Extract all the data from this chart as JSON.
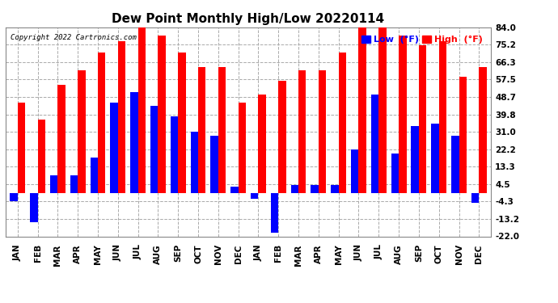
{
  "title": "Dew Point Monthly High/Low 20220114",
  "copyright": "Copyright 2022 Cartronics.com",
  "legend_low": "Low  (°F)",
  "legend_high": "High  (°F)",
  "months": [
    "JAN",
    "FEB",
    "MAR",
    "APR",
    "MAY",
    "JUN",
    "JUL",
    "AUG",
    "SEP",
    "OCT",
    "NOV",
    "DEC",
    "JAN",
    "FEB",
    "MAR",
    "APR",
    "MAY",
    "JUN",
    "JUL",
    "AUG",
    "SEP",
    "OCT",
    "NOV",
    "DEC"
  ],
  "high_values": [
    46,
    37,
    55,
    62,
    71,
    77,
    84,
    80,
    71,
    64,
    64,
    46,
    50,
    57,
    62,
    62,
    71,
    84,
    84,
    80,
    75,
    77,
    59,
    64
  ],
  "low_values": [
    -4,
    -15,
    9,
    9,
    18,
    46,
    51,
    44,
    39,
    31,
    29,
    3,
    -3,
    -20,
    4,
    4,
    4,
    22,
    50,
    20,
    34,
    35,
    29,
    -5
  ],
  "ylim": [
    -22,
    84
  ],
  "yticks": [
    -22.0,
    -13.2,
    -4.3,
    4.5,
    13.3,
    22.2,
    31.0,
    39.8,
    48.7,
    57.5,
    66.3,
    75.2,
    84.0
  ],
  "high_color": "#ff0000",
  "low_color": "#0000ff",
  "bg_color": "#ffffff",
  "grid_color": "#aaaaaa",
  "bar_width": 0.38,
  "title_fontsize": 11,
  "tick_fontsize": 7.5
}
